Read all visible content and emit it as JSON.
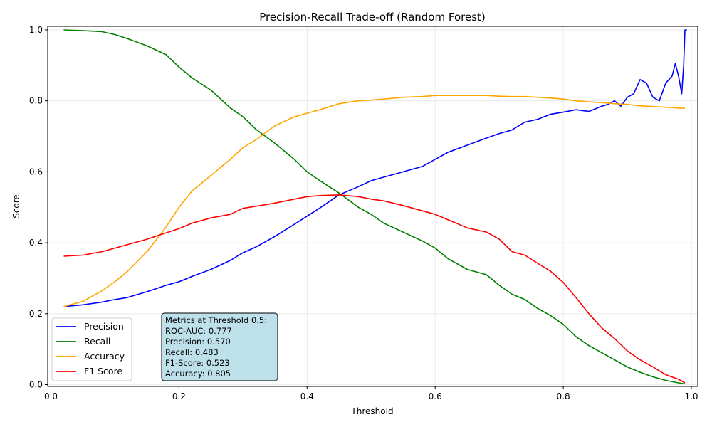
{
  "chart_data": {
    "type": "line",
    "title": "Precision-Recall Trade-off (Random Forest)",
    "xlabel": "Threshold",
    "ylabel": "Score",
    "xlim": [
      -0.005,
      1.01
    ],
    "ylim": [
      -0.005,
      1.01
    ],
    "x_ticks": [
      0.0,
      0.2,
      0.4,
      0.6,
      0.8,
      1.0
    ],
    "x_tick_labels": [
      "0.0",
      "0.2",
      "0.4",
      "0.6",
      "0.8",
      "1.0"
    ],
    "y_ticks": [
      0.0,
      0.2,
      0.4,
      0.6,
      0.8,
      1.0
    ],
    "y_tick_labels": [
      "0.0",
      "0.2",
      "0.4",
      "0.6",
      "0.8",
      "1.0"
    ],
    "grid": true,
    "legend_position": "lower-left",
    "series": [
      {
        "name": "Precision",
        "color": "#0000ff",
        "x": [
          0.02,
          0.05,
          0.08,
          0.1,
          0.12,
          0.15,
          0.18,
          0.2,
          0.22,
          0.25,
          0.28,
          0.3,
          0.32,
          0.35,
          0.38,
          0.4,
          0.42,
          0.45,
          0.48,
          0.5,
          0.52,
          0.55,
          0.58,
          0.6,
          0.62,
          0.65,
          0.68,
          0.7,
          0.72,
          0.74,
          0.76,
          0.78,
          0.8,
          0.82,
          0.84,
          0.86,
          0.87,
          0.88,
          0.89,
          0.9,
          0.91,
          0.92,
          0.93,
          0.94,
          0.95,
          0.96,
          0.97,
          0.975,
          0.98,
          0.985,
          0.988,
          0.99,
          0.993
        ],
        "values": [
          0.22,
          0.225,
          0.233,
          0.24,
          0.246,
          0.262,
          0.28,
          0.29,
          0.305,
          0.325,
          0.35,
          0.372,
          0.388,
          0.418,
          0.452,
          0.475,
          0.498,
          0.535,
          0.558,
          0.575,
          0.585,
          0.6,
          0.615,
          0.635,
          0.655,
          0.675,
          0.695,
          0.708,
          0.718,
          0.74,
          0.748,
          0.762,
          0.768,
          0.775,
          0.77,
          0.785,
          0.79,
          0.8,
          0.785,
          0.81,
          0.82,
          0.86,
          0.85,
          0.81,
          0.8,
          0.85,
          0.87,
          0.905,
          0.87,
          0.82,
          0.9,
          1.0,
          1.0
        ]
      },
      {
        "name": "Recall",
        "color": "#008000",
        "x": [
          0.02,
          0.05,
          0.08,
          0.1,
          0.12,
          0.15,
          0.18,
          0.2,
          0.22,
          0.25,
          0.28,
          0.3,
          0.32,
          0.35,
          0.38,
          0.4,
          0.42,
          0.45,
          0.48,
          0.5,
          0.52,
          0.55,
          0.58,
          0.6,
          0.62,
          0.65,
          0.68,
          0.7,
          0.72,
          0.74,
          0.76,
          0.78,
          0.8,
          0.82,
          0.84,
          0.86,
          0.88,
          0.9,
          0.92,
          0.94,
          0.96,
          0.98,
          0.99
        ],
        "values": [
          1.0,
          0.998,
          0.995,
          0.987,
          0.975,
          0.955,
          0.93,
          0.895,
          0.865,
          0.83,
          0.78,
          0.755,
          0.72,
          0.68,
          0.635,
          0.6,
          0.575,
          0.54,
          0.5,
          0.48,
          0.455,
          0.43,
          0.405,
          0.385,
          0.355,
          0.325,
          0.31,
          0.28,
          0.255,
          0.24,
          0.215,
          0.195,
          0.17,
          0.135,
          0.11,
          0.09,
          0.07,
          0.05,
          0.035,
          0.022,
          0.012,
          0.005,
          0.002
        ]
      },
      {
        "name": "Accuracy",
        "color": "#ffa500",
        "x": [
          0.02,
          0.05,
          0.08,
          0.1,
          0.12,
          0.15,
          0.18,
          0.2,
          0.22,
          0.25,
          0.28,
          0.3,
          0.32,
          0.35,
          0.38,
          0.4,
          0.42,
          0.45,
          0.48,
          0.5,
          0.52,
          0.55,
          0.58,
          0.6,
          0.62,
          0.65,
          0.68,
          0.7,
          0.72,
          0.74,
          0.76,
          0.78,
          0.8,
          0.82,
          0.84,
          0.86,
          0.88,
          0.9,
          0.92,
          0.94,
          0.96,
          0.98,
          0.99
        ],
        "values": [
          0.22,
          0.235,
          0.265,
          0.29,
          0.32,
          0.375,
          0.445,
          0.5,
          0.545,
          0.59,
          0.635,
          0.668,
          0.69,
          0.73,
          0.755,
          0.765,
          0.775,
          0.792,
          0.8,
          0.802,
          0.805,
          0.81,
          0.812,
          0.815,
          0.815,
          0.815,
          0.815,
          0.813,
          0.812,
          0.812,
          0.81,
          0.808,
          0.805,
          0.8,
          0.797,
          0.795,
          0.792,
          0.79,
          0.786,
          0.784,
          0.782,
          0.78,
          0.779
        ]
      },
      {
        "name": "F1 Score",
        "color": "#ff0000",
        "x": [
          0.02,
          0.05,
          0.08,
          0.1,
          0.12,
          0.15,
          0.18,
          0.2,
          0.22,
          0.25,
          0.28,
          0.3,
          0.32,
          0.35,
          0.38,
          0.4,
          0.42,
          0.45,
          0.48,
          0.5,
          0.52,
          0.55,
          0.58,
          0.6,
          0.62,
          0.65,
          0.68,
          0.7,
          0.72,
          0.74,
          0.76,
          0.78,
          0.8,
          0.82,
          0.84,
          0.86,
          0.88,
          0.9,
          0.92,
          0.94,
          0.96,
          0.98,
          0.99
        ],
        "values": [
          0.362,
          0.365,
          0.375,
          0.385,
          0.395,
          0.41,
          0.428,
          0.44,
          0.455,
          0.47,
          0.48,
          0.497,
          0.503,
          0.512,
          0.523,
          0.53,
          0.533,
          0.535,
          0.53,
          0.523,
          0.518,
          0.505,
          0.49,
          0.48,
          0.465,
          0.442,
          0.43,
          0.41,
          0.375,
          0.365,
          0.342,
          0.32,
          0.288,
          0.245,
          0.2,
          0.16,
          0.13,
          0.095,
          0.07,
          0.05,
          0.028,
          0.015,
          0.005
        ]
      }
    ]
  },
  "metrics_box": {
    "lines": [
      "Metrics at Threshold 0.5:",
      "ROC-AUC: 0.777",
      "Precision: 0.570",
      "Recall: 0.483",
      "F1-Score: 0.523",
      "Accuracy: 0.805"
    ]
  }
}
